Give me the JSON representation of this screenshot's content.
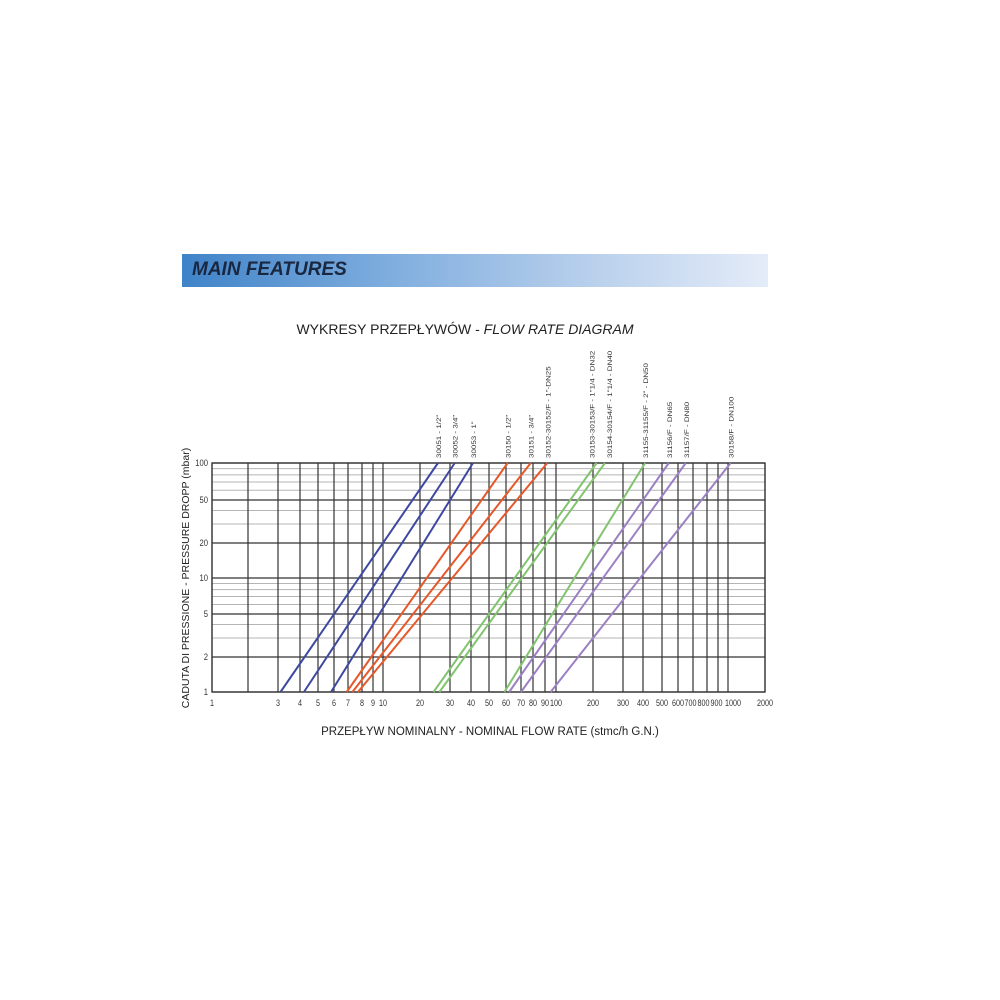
{
  "header": {
    "title": "MAIN FEATURES",
    "band_colors": [
      "#3f83c8",
      "#e4ecf8"
    ]
  },
  "chart_data": {
    "type": "line",
    "title_main": "WYKRESY PRZEPŁYWÓW - ",
    "title_italic": "FLOW RATE DIAGRAM",
    "xlabel": "PRZEPŁYW NOMINALNY - NOMINAL FLOW RATE (stmc/h G.N.)",
    "ylabel": "CADUTA DI PRESSIONE - PRESSURE DROPP (mbar)",
    "x_scale": "log",
    "y_scale": "log",
    "xlim": [
      1,
      2000
    ],
    "ylim": [
      1,
      100
    ],
    "grid": true,
    "x_ticks": [
      1,
      3,
      4,
      5,
      6,
      7,
      8,
      9,
      10,
      20,
      30,
      40,
      50,
      60,
      70,
      80,
      90,
      100,
      200,
      300,
      400,
      500,
      600,
      700,
      800,
      900,
      1000,
      2000
    ],
    "y_ticks": [
      1,
      2,
      5,
      10,
      20,
      50,
      100
    ],
    "colors": {
      "blue": "#3e48a0",
      "orange": "#e5582a",
      "green": "#82c46e",
      "purple": "#9b80c4"
    },
    "series": [
      {
        "name": "30051 - 1/2\"",
        "color": "blue",
        "x": [
          3.1,
          25.5
        ],
        "y": [
          1,
          100
        ]
      },
      {
        "name": "30052 - 3/4\"",
        "color": "blue",
        "x": [
          4.2,
          32
        ],
        "y": [
          1,
          100
        ]
      },
      {
        "name": "30053 - 1\"",
        "color": "blue",
        "x": [
          5.8,
          41
        ],
        "y": [
          1,
          100
        ]
      },
      {
        "name": "30150 - 1/2\"",
        "color": "orange",
        "x": [
          6.9,
          61
        ],
        "y": [
          1,
          100
        ]
      },
      {
        "name": "30151 - 3/4\"",
        "color": "orange",
        "x": [
          7.3,
          78
        ],
        "y": [
          1,
          100
        ]
      },
      {
        "name": "30152-30152/F - 1\"-DN25",
        "color": "orange",
        "x": [
          7.7,
          92
        ],
        "y": [
          1,
          100
        ]
      },
      {
        "name": "30153-30153/F - 1\"1/4 - DN32",
        "color": "green",
        "x": [
          24,
          210
        ],
        "y": [
          1,
          100
        ]
      },
      {
        "name": "30154-30154/F - 1\"1/4 - DN40",
        "color": "green",
        "x": [
          26,
          235
        ],
        "y": [
          1,
          100
        ]
      },
      {
        "name": "31155-31155/F - 2\" - DN50",
        "color": "green",
        "x": [
          59,
          410
        ],
        "y": [
          1,
          100
        ]
      },
      {
        "name": "31156/F - DN65",
        "color": "purple",
        "x": [
          62,
          540
        ],
        "y": [
          1,
          100
        ]
      },
      {
        "name": "31157/F - DN80",
        "color": "purple",
        "x": [
          70,
          650
        ],
        "y": [
          1,
          100
        ]
      },
      {
        "name": "30158/F - DN100",
        "color": "purple",
        "x": [
          95,
          1050
        ],
        "y": [
          1,
          100
        ]
      }
    ]
  }
}
